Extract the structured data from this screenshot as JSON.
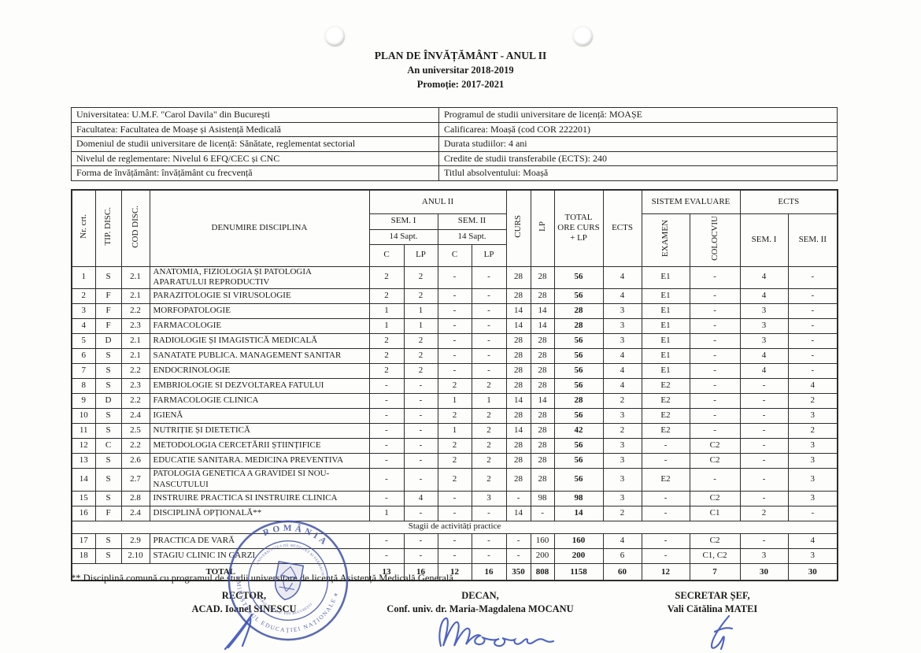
{
  "page": {
    "title_line1": "PLAN DE ÎNVĂȚĂMÂNT - ANUL II",
    "title_line2": "An universitar 2018-2019",
    "title_line3": "Promoție: 2017-2021"
  },
  "info_table": {
    "rows": [
      {
        "left": "Universitatea: U.M.F. \"Carol Davila\" din București",
        "right": "Programul de studii universitare de licență: MOAȘE"
      },
      {
        "left": "Facultatea: Facultatea de Moașe și Asistență Medicală",
        "right": "Calificarea: Moașă (cod COR 222201)"
      },
      {
        "left": "Domeniul de studii universitare de licență: Sănătate, reglementat sectorial",
        "right": "Durata studiilor: 4 ani"
      },
      {
        "left": "Nivelul de reglementare: Nivelul 6 EFQ/CEC și CNC",
        "right": "Credite de studii transferabile (ECTS): 240"
      },
      {
        "left": "Forma de învățământ: învățământ cu frecvență",
        "right": "Titlul absolventului: Moașă"
      }
    ]
  },
  "curriculum_table": {
    "headers": {
      "nr": "Nr. crt.",
      "tip": "TIP. DISC.",
      "cod": "COD DISC.",
      "denumire": "DENUMIRE DISCIPLINA",
      "anul": "ANUL II",
      "sem1": "SEM. I",
      "sem2": "SEM. II",
      "sapt": "14 Sapt.",
      "c": "C",
      "lp_sub": "LP",
      "curs": "CURS",
      "lp": "LP",
      "total": "TOTAL ORE CURS + LP",
      "ects": "ECTS",
      "sistem": "SISTEM EVALUARE",
      "examen": "EXAMEN",
      "colocviu": "COLOCVIU",
      "ects2": "ECTS",
      "ects_sem1": "SEM. I",
      "ects_sem2": "SEM. II"
    },
    "rows": [
      {
        "nr": "1",
        "tip": "S",
        "cod": "2.1",
        "name": "ANATOMIA, FIZIOLOGIA ȘI PATOLOGIA APARATULUI REPRODUCTIV",
        "s1c": "2",
        "s1lp": "2",
        "s2c": "-",
        "s2lp": "-",
        "curs": "28",
        "lp": "28",
        "total": "56",
        "ects": "4",
        "ex": "E1",
        "col": "-",
        "e1": "4",
        "e2": "-"
      },
      {
        "nr": "2",
        "tip": "F",
        "cod": "2.1",
        "name": "PARAZITOLOGIE SI VIRUSOLOGIE",
        "s1c": "2",
        "s1lp": "2",
        "s2c": "-",
        "s2lp": "-",
        "curs": "28",
        "lp": "28",
        "total": "56",
        "ects": "4",
        "ex": "E1",
        "col": "-",
        "e1": "4",
        "e2": "-"
      },
      {
        "nr": "3",
        "tip": "F",
        "cod": "2.2",
        "name": "MORFOPATOLOGIE",
        "s1c": "1",
        "s1lp": "1",
        "s2c": "-",
        "s2lp": "-",
        "curs": "14",
        "lp": "14",
        "total": "28",
        "ects": "3",
        "ex": "E1",
        "col": "-",
        "e1": "3",
        "e2": "-"
      },
      {
        "nr": "4",
        "tip": "F",
        "cod": "2.3",
        "name": "FARMACOLOGIE",
        "s1c": "1",
        "s1lp": "1",
        "s2c": "-",
        "s2lp": "-",
        "curs": "14",
        "lp": "14",
        "total": "28",
        "ects": "3",
        "ex": "E1",
        "col": "-",
        "e1": "3",
        "e2": "-"
      },
      {
        "nr": "5",
        "tip": "D",
        "cod": "2.1",
        "name": "RADIOLOGIE ȘI IMAGISTICĂ MEDICALĂ",
        "s1c": "2",
        "s1lp": "2",
        "s2c": "-",
        "s2lp": "-",
        "curs": "28",
        "lp": "28",
        "total": "56",
        "ects": "3",
        "ex": "E1",
        "col": "-",
        "e1": "3",
        "e2": "-"
      },
      {
        "nr": "6",
        "tip": "S",
        "cod": "2.1",
        "name": "SANATATE PUBLICA. MANAGEMENT SANITAR",
        "s1c": "2",
        "s1lp": "2",
        "s2c": "-",
        "s2lp": "-",
        "curs": "28",
        "lp": "28",
        "total": "56",
        "ects": "4",
        "ex": "E1",
        "col": "-",
        "e1": "4",
        "e2": "-"
      },
      {
        "nr": "7",
        "tip": "S",
        "cod": "2.2",
        "name": "ENDOCRINOLOGIE",
        "s1c": "2",
        "s1lp": "2",
        "s2c": "-",
        "s2lp": "-",
        "curs": "28",
        "lp": "28",
        "total": "56",
        "ects": "4",
        "ex": "E1",
        "col": "-",
        "e1": "4",
        "e2": "-"
      },
      {
        "nr": "8",
        "tip": "S",
        "cod": "2.3",
        "name": "EMBRIOLOGIE SI DEZVOLTAREA FATULUI",
        "s1c": "-",
        "s1lp": "-",
        "s2c": "2",
        "s2lp": "2",
        "curs": "28",
        "lp": "28",
        "total": "56",
        "ects": "4",
        "ex": "E2",
        "col": "-",
        "e1": "-",
        "e2": "4"
      },
      {
        "nr": "9",
        "tip": "D",
        "cod": "2.2",
        "name": "FARMACOLOGIE CLINICA",
        "s1c": "-",
        "s1lp": "-",
        "s2c": "1",
        "s2lp": "1",
        "curs": "14",
        "lp": "14",
        "total": "28",
        "ects": "2",
        "ex": "E2",
        "col": "-",
        "e1": "-",
        "e2": "2"
      },
      {
        "nr": "10",
        "tip": "S",
        "cod": "2.4",
        "name": "IGIENĂ",
        "s1c": "-",
        "s1lp": "-",
        "s2c": "2",
        "s2lp": "2",
        "curs": "28",
        "lp": "28",
        "total": "56",
        "ects": "3",
        "ex": "E2",
        "col": "-",
        "e1": "-",
        "e2": "3"
      },
      {
        "nr": "11",
        "tip": "S",
        "cod": "2.5",
        "name": "NUTRIȚIE ȘI DIETETICĂ",
        "s1c": "-",
        "s1lp": "-",
        "s2c": "1",
        "s2lp": "2",
        "curs": "14",
        "lp": "28",
        "total": "42",
        "ects": "2",
        "ex": "E2",
        "col": "-",
        "e1": "-",
        "e2": "2"
      },
      {
        "nr": "12",
        "tip": "C",
        "cod": "2.2",
        "name": "METODOLOGIA CERCETĂRII ȘTIINȚIFICE",
        "s1c": "-",
        "s1lp": "-",
        "s2c": "2",
        "s2lp": "2",
        "curs": "28",
        "lp": "28",
        "total": "56",
        "ects": "3",
        "ex": "-",
        "col": "C2",
        "e1": "-",
        "e2": "3"
      },
      {
        "nr": "13",
        "tip": "S",
        "cod": "2.6",
        "name": "EDUCATIE SANITARA. MEDICINA PREVENTIVA",
        "s1c": "-",
        "s1lp": "-",
        "s2c": "2",
        "s2lp": "2",
        "curs": "28",
        "lp": "28",
        "total": "56",
        "ects": "3",
        "ex": "-",
        "col": "C2",
        "e1": "-",
        "e2": "3"
      },
      {
        "nr": "14",
        "tip": "S",
        "cod": "2.7",
        "name": "PATOLOGIA GENETICA A GRAVIDEI SI NOU-NASCUTULUI",
        "s1c": "-",
        "s1lp": "-",
        "s2c": "2",
        "s2lp": "2",
        "curs": "28",
        "lp": "28",
        "total": "56",
        "ects": "3",
        "ex": "E2",
        "col": "-",
        "e1": "-",
        "e2": "3"
      },
      {
        "nr": "15",
        "tip": "S",
        "cod": "2.8",
        "name": "INSTRUIRE PRACTICA SI INSTRUIRE CLINICA",
        "s1c": "-",
        "s1lp": "4",
        "s2c": "-",
        "s2lp": "3",
        "curs": "-",
        "lp": "98",
        "total": "98",
        "ects": "3",
        "ex": "-",
        "col": "C2",
        "e1": "-",
        "e2": "3"
      },
      {
        "nr": "16",
        "tip": "F",
        "cod": "2.4",
        "name": "DISCIPLINĂ OPȚIONALĂ**",
        "s1c": "1",
        "s1lp": "-",
        "s2c": "-",
        "s2lp": "-",
        "curs": "14",
        "lp": "-",
        "total": "14",
        "ects": "2",
        "ex": "-",
        "col": "C1",
        "e1": "2",
        "e2": "-"
      },
      {
        "separator": "Stagii de activități practice"
      },
      {
        "nr": "17",
        "tip": "S",
        "cod": "2.9",
        "name": "PRACTICA DE VARĂ",
        "s1c": "-",
        "s1lp": "-",
        "s2c": "-",
        "s2lp": "-",
        "curs": "-",
        "lp": "160",
        "total": "160",
        "ects": "4",
        "ex": "-",
        "col": "C2",
        "e1": "-",
        "e2": "4"
      },
      {
        "nr": "18",
        "tip": "S",
        "cod": "2.10",
        "name": "STAGIU CLINIC IN GARZI",
        "s1c": "-",
        "s1lp": "-",
        "s2c": "-",
        "s2lp": "-",
        "curs": "-",
        "lp": "200",
        "total": "200",
        "ects": "6",
        "ex": "-",
        "col": "C1, C2",
        "e1": "3",
        "e2": "3"
      }
    ],
    "total": {
      "label": "TOTAL",
      "s1c": "13",
      "s1lp": "16",
      "s2c": "12",
      "s2lp": "16",
      "curs": "350",
      "lp": "808",
      "total": "1158",
      "ects": "60",
      "ex": "12",
      "col": "7",
      "e1": "30",
      "e2": "30"
    }
  },
  "footnote": "** Disciplină comună cu programul de studii universitare de licență Asistență Medicală Generală",
  "signatures": [
    {
      "role": "RECTOR,",
      "name": "ACAD. Ioanel SINESCU"
    },
    {
      "role": "DECAN,",
      "name": "Conf. univ. dr. Maria-Magdalena MOCANU"
    },
    {
      "role": "SECRETAR ȘEF,",
      "name": "Vali Cătălina MATEI"
    }
  ],
  "stamp": {
    "ring_top": "ROMÂNIA",
    "ring_bottom": "MINISTERUL EDUCAȚIEI NAȚIONALE",
    "inner_top": "UNIVERSITATEA DE MEDICINĂ ȘI FARMACIE",
    "inner_bottom": "„CAROL DAVILA” DIN BUCUREȘTI",
    "star": "*",
    "color": "#3f51a8"
  }
}
